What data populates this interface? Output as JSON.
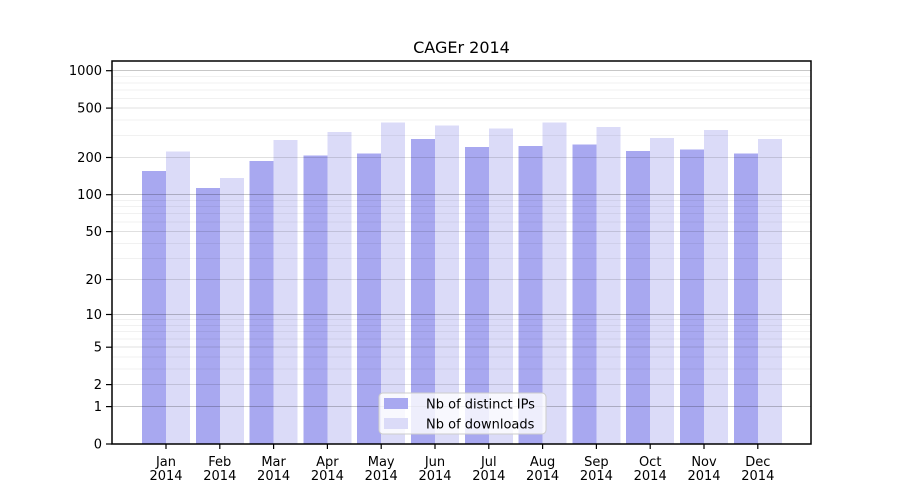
{
  "title": "CAGEr 2014",
  "chart_data": {
    "type": "bar",
    "title": "CAGEr 2014",
    "y_scale": "log(value+1)",
    "y_ticks": [
      1000,
      500,
      200,
      100,
      50,
      20,
      10,
      5,
      2,
      1,
      0
    ],
    "ylim": [
      0,
      1190
    ],
    "grid": true,
    "legend_position": "bottom-center",
    "categories": [
      "Jan",
      "Feb",
      "Mar",
      "Apr",
      "May",
      "Jun",
      "Jul",
      "Aug",
      "Sep",
      "Oct",
      "Nov",
      "Dec"
    ],
    "x_year_line": "2014",
    "series": [
      {
        "name": "Nb of distinct IPs",
        "color": "#a8a8f0",
        "values": [
          155,
          113,
          188,
          208,
          216,
          283,
          243,
          247,
          255,
          226,
          232,
          215
        ]
      },
      {
        "name": "Nb of downloads",
        "color": "#dbdbf8",
        "values": [
          224,
          137,
          278,
          322,
          383,
          362,
          343,
          383,
          353,
          288,
          334,
          282
        ]
      }
    ],
    "colors": {
      "axis": "#000000",
      "text": "#000000",
      "grid_decade": "rgba(0,0,0,0.22)",
      "grid_tick": "rgba(0,0,0,0.12)",
      "grid_minor": "rgba(0,0,0,0.055)",
      "legend_bg": "rgba(255,255,255,0.8)",
      "legend_border": "#cccccc"
    }
  }
}
